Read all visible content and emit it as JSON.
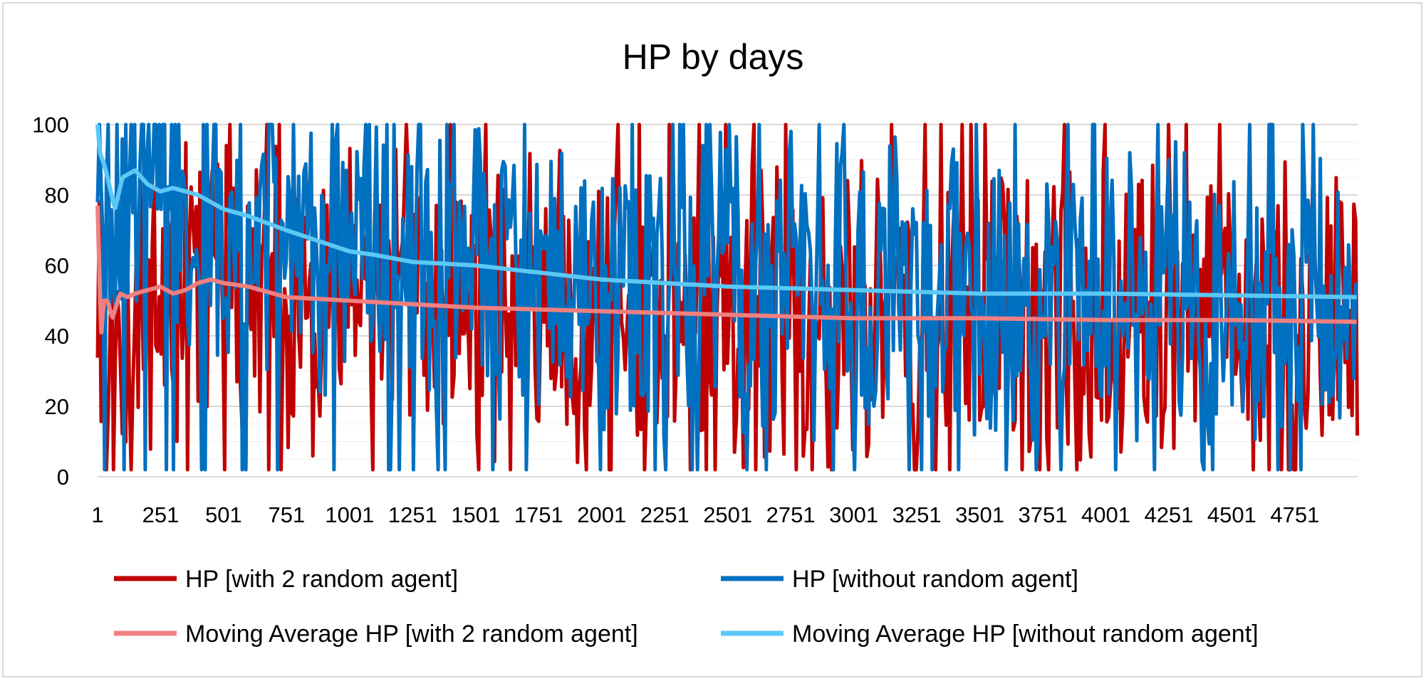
{
  "chart_data": {
    "type": "line",
    "title": "HP by days",
    "xlabel": "",
    "ylabel": "",
    "ylim": [
      0,
      100
    ],
    "xlim": [
      1,
      5000
    ],
    "y_ticks": [
      "0",
      "20",
      "40",
      "60",
      "80",
      "100"
    ],
    "x_ticks": [
      "1",
      "251",
      "501",
      "751",
      "1001",
      "1251",
      "1501",
      "1751",
      "2001",
      "2251",
      "2501",
      "2751",
      "3001",
      "3251",
      "3501",
      "3751",
      "4001",
      "4251",
      "4501",
      "4751"
    ],
    "grid": true,
    "legend_position": "bottom",
    "series": [
      {
        "name": "HP [with 2 random agent]",
        "color": "#c00000",
        "noisy": true,
        "seed": 11,
        "lo": 2,
        "hi": 100,
        "x": [
          1,
          40,
          250,
          500,
          750,
          1000,
          1250,
          1500,
          2000,
          2500,
          3000,
          3500,
          4000,
          4500,
          5000
        ],
        "values": [
          58,
          40,
          53,
          55,
          51,
          49,
          49,
          48,
          47,
          46,
          45,
          45,
          44,
          44,
          44
        ]
      },
      {
        "name": "HP [without random agent]",
        "color": "#0070c0",
        "noisy": true,
        "seed": 23,
        "lo": 2,
        "hi": 100,
        "x": [
          1,
          40,
          60,
          100,
          250,
          500,
          750,
          1000,
          1250,
          1500,
          2000,
          2500,
          3000,
          3500,
          4000,
          4500,
          5000
        ],
        "values": [
          100,
          90,
          75,
          88,
          81,
          76,
          68,
          63,
          60,
          59,
          56,
          54,
          53,
          52,
          52,
          51,
          51
        ]
      },
      {
        "name": "Moving Average HP [with 2 random agent]",
        "color": "#f08080",
        "noisy": false,
        "x": [
          1,
          15,
          25,
          40,
          60,
          90,
          120,
          150,
          200,
          250,
          300,
          350,
          400,
          450,
          500,
          600,
          750,
          1000,
          1250,
          1500,
          1750,
          2000,
          2500,
          3000,
          3500,
          4000,
          4500,
          5000
        ],
        "values": [
          77,
          40,
          50,
          50,
          45,
          52,
          51,
          52,
          53,
          54,
          52,
          53,
          55,
          56,
          55,
          54,
          51,
          50,
          49,
          48,
          47.5,
          47,
          46,
          45,
          45,
          44.5,
          44.5,
          44
        ]
      },
      {
        "name": "Moving Average HP [without random agent]",
        "color": "#5bc8f5",
        "noisy": false,
        "x": [
          1,
          10,
          30,
          50,
          70,
          100,
          150,
          200,
          250,
          300,
          400,
          500,
          600,
          750,
          1000,
          1100,
          1250,
          1500,
          1750,
          2000,
          2500,
          3000,
          3500,
          4000,
          4500,
          5000
        ],
        "values": [
          100,
          92,
          88,
          82,
          76,
          85,
          87,
          83,
          81,
          82,
          80,
          76,
          74,
          70,
          64,
          63,
          61,
          60,
          58,
          56,
          54,
          53,
          52,
          52,
          51.5,
          51
        ]
      }
    ]
  }
}
